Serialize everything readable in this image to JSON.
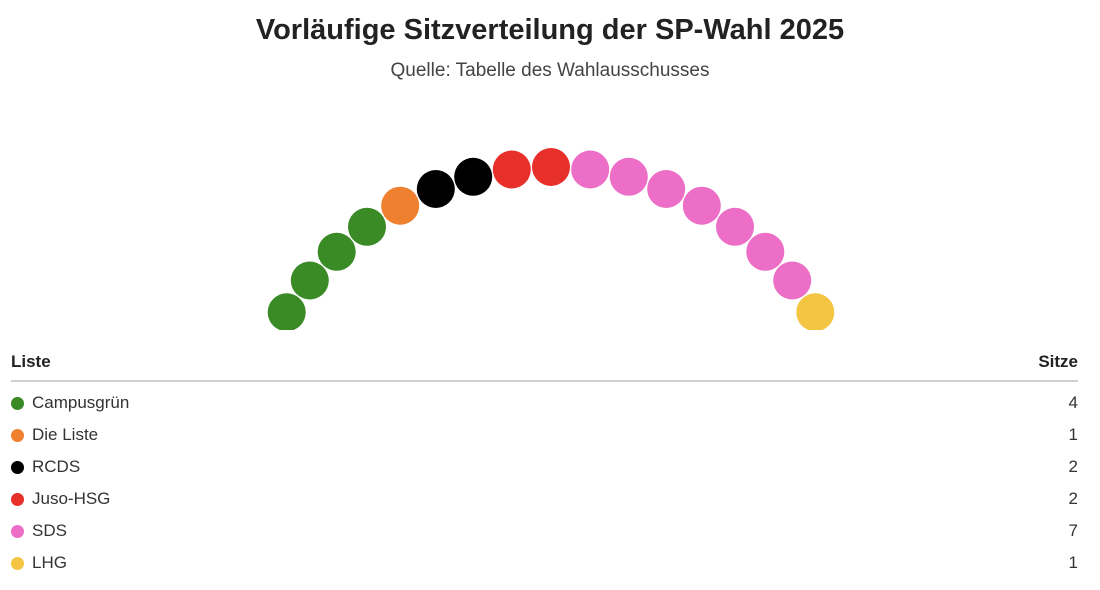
{
  "header": {
    "title": "Vorläufige Sitzverteilung der SP-Wahl 2025",
    "subtitle": "Quelle: Tabelle des Wahlausschusses"
  },
  "table": {
    "col_party": "Liste",
    "col_seats": "Sitze"
  },
  "chart_data": {
    "type": "parliament",
    "total_seats": 17,
    "series": [
      {
        "name": "Campusgrün",
        "seats": 4,
        "color": "#3a8a25"
      },
      {
        "name": "Die Liste",
        "seats": 1,
        "color": "#ef8030"
      },
      {
        "name": "RCDS",
        "seats": 2,
        "color": "#000000"
      },
      {
        "name": "Juso-HSG",
        "seats": 2,
        "color": "#e8302a"
      },
      {
        "name": "SDS",
        "seats": 7,
        "color": "#ec6ec6"
      },
      {
        "name": "LHG",
        "seats": 1,
        "color": "#f4c542"
      }
    ]
  }
}
